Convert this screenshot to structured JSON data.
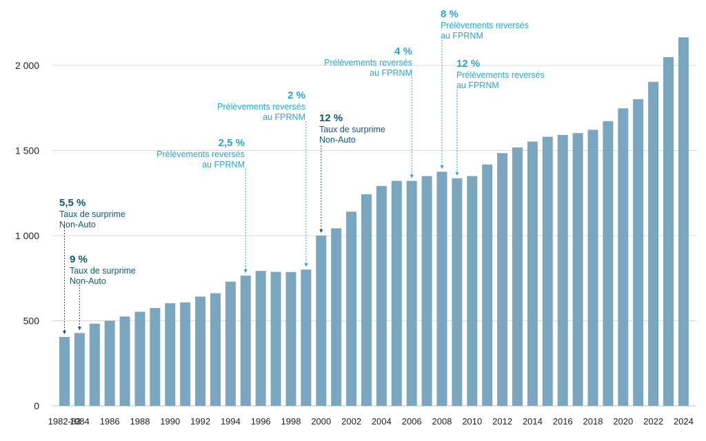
{
  "chart_data": {
    "type": "bar",
    "categories": [
      "1982-83",
      "1984",
      "1985",
      "1986",
      "1987",
      "1988",
      "1989",
      "1990",
      "1991",
      "1992",
      "1993",
      "1994",
      "1995",
      "1996",
      "1997",
      "1998",
      "1999",
      "2000",
      "2001",
      "2002",
      "2003",
      "2004",
      "2005",
      "2006",
      "2007",
      "2008",
      "2009",
      "2010",
      "2011",
      "2012",
      "2013",
      "2014",
      "2015",
      "2016",
      "2017",
      "2018",
      "2019",
      "2020",
      "2021",
      "2022",
      "2023",
      "2024"
    ],
    "x_tick_labels": [
      "1982-83",
      "1984",
      "1986",
      "1988",
      "1990",
      "1992",
      "1994",
      "1996",
      "1998",
      "2000",
      "2002",
      "2004",
      "2006",
      "2008",
      "2010",
      "2012",
      "2014",
      "2016",
      "2018",
      "2020",
      "2022",
      "2024"
    ],
    "values": [
      405,
      428,
      483,
      500,
      525,
      553,
      575,
      603,
      608,
      642,
      662,
      730,
      765,
      793,
      787,
      786,
      801,
      1000,
      1043,
      1141,
      1243,
      1292,
      1322,
      1322,
      1350,
      1376,
      1337,
      1350,
      1418,
      1485,
      1518,
      1553,
      1581,
      1592,
      1603,
      1622,
      1673,
      1748,
      1802,
      1904,
      2049,
      2165
    ],
    "ylim": [
      0,
      2200
    ],
    "y_ticks": [
      0,
      500,
      1000,
      1500,
      2000
    ],
    "y_tick_labels": [
      "0",
      "500",
      "1 000",
      "1 500",
      "2 000"
    ],
    "grid": true,
    "title": "",
    "xlabel": "",
    "ylabel": "",
    "colors": {
      "bar": "#7aa7bf",
      "dark_annotation": "#0d5878",
      "light_annotation": "#24a6d6"
    },
    "annotations": [
      {
        "category": "1982-83",
        "style": "dark",
        "value_text": "5,5 %",
        "lines": [
          "Taux de surprime",
          "Non-Auto"
        ]
      },
      {
        "category": "1984",
        "style": "dark",
        "value_text": "9 %",
        "lines": [
          "Taux de surprime",
          "Non-Auto"
        ]
      },
      {
        "category": "1995",
        "style": "light",
        "value_text": "2,5 %",
        "lines": [
          "Prélèvements reversés",
          "au FPRNM"
        ]
      },
      {
        "category": "1999",
        "style": "light",
        "value_text": "2 %",
        "lines": [
          "Prélèvements reversés",
          "au FPRNM"
        ]
      },
      {
        "category": "2000",
        "style": "dark",
        "value_text": "12 %",
        "lines": [
          "Taux de surprime",
          "Non-Auto"
        ]
      },
      {
        "category": "2006",
        "style": "light",
        "value_text": "4 %",
        "lines": [
          "Prélèvements reversés",
          "au FPRNM"
        ]
      },
      {
        "category": "2008",
        "style": "light",
        "value_text": "8 %",
        "lines": [
          "Prélèvements reversés",
          "au FPRNM"
        ]
      },
      {
        "category": "2009",
        "style": "light",
        "value_text": "12 %",
        "lines": [
          "Prélèvements reversés",
          "au FPRNM"
        ]
      }
    ]
  }
}
